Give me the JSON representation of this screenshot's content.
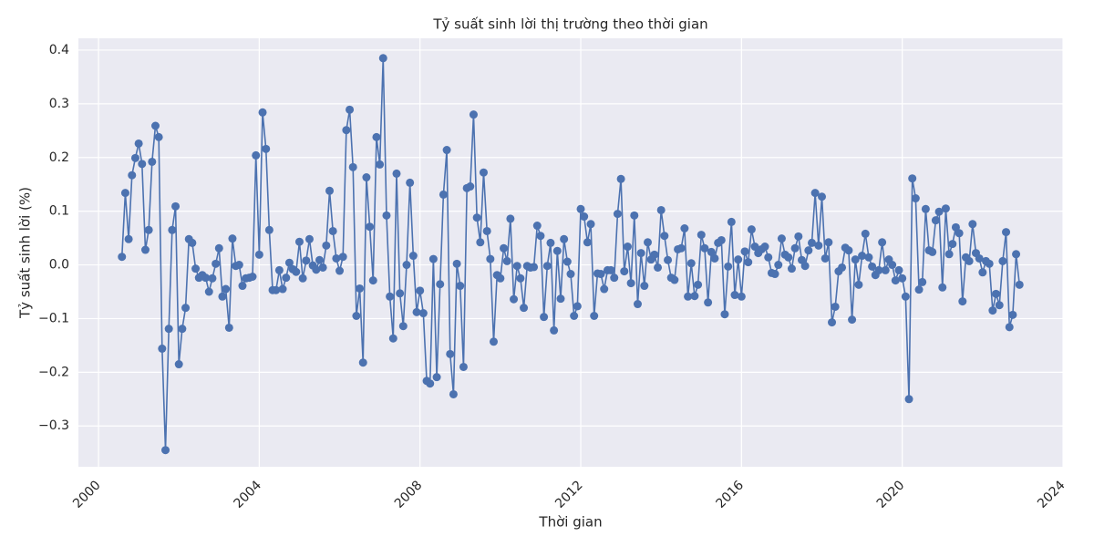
{
  "chart_data": {
    "type": "line",
    "title": "Tỷ suất sinh lời thị trường theo thời gian",
    "xlabel": "Thời gian",
    "ylabel": "Tỷ suất sinh lời (%)",
    "xlim": [
      1999.5,
      2024
    ],
    "ylim": [
      -0.376,
      0.422
    ],
    "xticks": [
      2000,
      2004,
      2008,
      2012,
      2016,
      2020,
      2024
    ],
    "yticks": [
      {
        "value": -0.3,
        "label": "−0.3"
      },
      {
        "value": -0.2,
        "label": "−0.2"
      },
      {
        "value": -0.1,
        "label": "−0.1"
      },
      {
        "value": 0,
        "label": "0.0"
      },
      0.1,
      0.2,
      0.3,
      0.4
    ],
    "grid": true,
    "series": [
      {
        "color": "#4c72b0",
        "x": [
          2000.583,
          2000.667,
          2000.75,
          2000.833,
          2000.917,
          2001,
          2001.083,
          2001.167,
          2001.25,
          2001.333,
          2001.417,
          2001.5,
          2001.583,
          2001.667,
          2001.75,
          2001.833,
          2001.917,
          2002,
          2002.083,
          2002.167,
          2002.25,
          2002.333,
          2002.417,
          2002.5,
          2002.583,
          2002.667,
          2002.75,
          2002.833,
          2002.917,
          2003,
          2003.083,
          2003.167,
          2003.25,
          2003.333,
          2003.417,
          2003.5,
          2003.583,
          2003.667,
          2003.75,
          2003.833,
          2003.917,
          2004,
          2004.083,
          2004.167,
          2004.25,
          2004.333,
          2004.417,
          2004.5,
          2004.583,
          2004.667,
          2004.75,
          2004.833,
          2004.917,
          2005,
          2005.083,
          2005.167,
          2005.25,
          2005.333,
          2005.417,
          2005.5,
          2005.583,
          2005.667,
          2005.75,
          2005.833,
          2005.917,
          2006,
          2006.083,
          2006.167,
          2006.25,
          2006.333,
          2006.417,
          2006.5,
          2006.583,
          2006.667,
          2006.75,
          2006.833,
          2006.917,
          2007,
          2007.083,
          2007.167,
          2007.25,
          2007.333,
          2007.417,
          2007.5,
          2007.583,
          2007.667,
          2007.75,
          2007.833,
          2007.917,
          2008,
          2008.083,
          2008.167,
          2008.25,
          2008.333,
          2008.417,
          2008.5,
          2008.583,
          2008.667,
          2008.75,
          2008.833,
          2008.917,
          2009,
          2009.083,
          2009.167,
          2009.25,
          2009.333,
          2009.417,
          2009.5,
          2009.583,
          2009.667,
          2009.75,
          2009.833,
          2009.917,
          2010,
          2010.083,
          2010.167,
          2010.25,
          2010.333,
          2010.417,
          2010.5,
          2010.583,
          2010.667,
          2010.75,
          2010.833,
          2010.917,
          2011,
          2011.083,
          2011.167,
          2011.25,
          2011.333,
          2011.417,
          2011.5,
          2011.583,
          2011.667,
          2011.75,
          2011.833,
          2011.917,
          2012,
          2012.083,
          2012.167,
          2012.25,
          2012.333,
          2012.417,
          2012.5,
          2012.583,
          2012.667,
          2012.75,
          2012.833,
          2012.917,
          2013,
          2013.083,
          2013.167,
          2013.25,
          2013.333,
          2013.417,
          2013.5,
          2013.583,
          2013.667,
          2013.75,
          2013.833,
          2013.917,
          2014,
          2014.083,
          2014.167,
          2014.25,
          2014.333,
          2014.417,
          2014.5,
          2014.583,
          2014.667,
          2014.75,
          2014.833,
          2014.917,
          2015,
          2015.083,
          2015.167,
          2015.25,
          2015.333,
          2015.417,
          2015.5,
          2015.583,
          2015.667,
          2015.75,
          2015.833,
          2015.917,
          2016,
          2016.083,
          2016.167,
          2016.25,
          2016.333,
          2016.417,
          2016.5,
          2016.583,
          2016.667,
          2016.75,
          2016.833,
          2016.917,
          2017,
          2017.083,
          2017.167,
          2017.25,
          2017.333,
          2017.417,
          2017.5,
          2017.583,
          2017.667,
          2017.75,
          2017.833,
          2017.917,
          2018,
          2018.083,
          2018.167,
          2018.25,
          2018.333,
          2018.417,
          2018.5,
          2018.583,
          2018.667,
          2018.75,
          2018.833,
          2018.917,
          2019,
          2019.083,
          2019.167,
          2019.25,
          2019.333,
          2019.417,
          2019.5,
          2019.583,
          2019.667,
          2019.75,
          2019.833,
          2019.917,
          2020,
          2020.083,
          2020.167,
          2020.25,
          2020.333,
          2020.417,
          2020.5,
          2020.583,
          2020.667,
          2020.75,
          2020.833,
          2020.917,
          2021,
          2021.083,
          2021.167,
          2021.25,
          2021.333,
          2021.417,
          2021.5,
          2021.583,
          2021.667,
          2021.75,
          2021.833,
          2021.917,
          2022,
          2022.083,
          2022.167,
          2022.25,
          2022.333,
          2022.417,
          2022.5,
          2022.583,
          2022.667,
          2022.75,
          2022.833,
          2022.917
        ],
        "values": [
          0.015,
          0.134,
          0.048,
          0.167,
          0.199,
          0.226,
          0.188,
          0.028,
          0.065,
          0.192,
          0.259,
          0.238,
          -0.156,
          -0.345,
          -0.119,
          0.065,
          0.109,
          -0.185,
          -0.119,
          -0.08,
          0.048,
          0.041,
          -0.007,
          -0.024,
          -0.019,
          -0.024,
          -0.05,
          -0.025,
          0.002,
          0.031,
          -0.059,
          -0.045,
          -0.117,
          0.049,
          -0.002,
          0,
          -0.039,
          -0.025,
          -0.024,
          -0.022,
          0.204,
          0.019,
          0.284,
          0.216,
          0.065,
          -0.047,
          -0.047,
          -0.01,
          -0.045,
          -0.024,
          0.004,
          -0.008,
          -0.013,
          0.043,
          -0.025,
          0.008,
          0.048,
          -0.001,
          -0.009,
          0.009,
          -0.005,
          0.036,
          0.138,
          0.063,
          0.012,
          -0.011,
          0.015,
          0.251,
          0.289,
          0.182,
          -0.095,
          -0.044,
          -0.182,
          0.163,
          0.071,
          -0.029,
          0.238,
          0.187,
          0.385,
          0.092,
          -0.059,
          -0.137,
          0.17,
          -0.053,
          -0.114,
          0,
          0.153,
          0.017,
          -0.088,
          -0.048,
          -0.09,
          -0.216,
          -0.221,
          0.011,
          -0.209,
          -0.036,
          0.131,
          0.214,
          -0.166,
          -0.241,
          0.002,
          -0.039,
          -0.19,
          0.143,
          0.146,
          0.28,
          0.088,
          0.042,
          0.172,
          0.063,
          0.011,
          -0.143,
          -0.019,
          -0.025,
          0.031,
          0.007,
          0.086,
          -0.064,
          -0.002,
          -0.025,
          -0.08,
          -0.002,
          -0.005,
          -0.004,
          0.073,
          0.054,
          -0.097,
          -0.002,
          0.041,
          -0.122,
          0.026,
          -0.063,
          0.048,
          0.006,
          -0.017,
          -0.095,
          -0.077,
          0.104,
          0.09,
          0.042,
          0.076,
          -0.095,
          -0.016,
          -0.017,
          -0.045,
          -0.01,
          -0.01,
          -0.024,
          0.095,
          0.16,
          -0.012,
          0.034,
          -0.034,
          0.092,
          -0.073,
          0.022,
          -0.039,
          0.042,
          0.01,
          0.019,
          -0.005,
          0.102,
          0.054,
          0.009,
          -0.024,
          -0.028,
          0.029,
          0.031,
          0.068,
          -0.059,
          0.003,
          -0.058,
          -0.037,
          0.056,
          0.031,
          -0.07,
          0.024,
          0.012,
          0.041,
          0.046,
          -0.092,
          -0.003,
          0.08,
          -0.056,
          0.01,
          -0.059,
          0.025,
          0.005,
          0.066,
          0.034,
          0.022,
          0.029,
          0.034,
          0.014,
          -0.015,
          -0.017,
          0,
          0.049,
          0.019,
          0.014,
          -0.007,
          0.031,
          0.053,
          0.009,
          -0.002,
          0.027,
          0.041,
          0.134,
          0.036,
          0.127,
          0.012,
          0.042,
          -0.107,
          -0.078,
          -0.012,
          -0.005,
          0.032,
          0.027,
          -0.102,
          0.01,
          -0.037,
          0.017,
          0.058,
          0.014,
          -0.003,
          -0.019,
          -0.01,
          0.042,
          -0.01,
          0.01,
          0,
          -0.029,
          -0.01,
          -0.025,
          -0.059,
          -0.25,
          0.161,
          0.124,
          -0.046,
          -0.032,
          0.104,
          0.027,
          0.024,
          0.083,
          0.099,
          -0.042,
          0.105,
          0.02,
          0.039,
          0.07,
          0.059,
          -0.068,
          0.014,
          0.007,
          0.076,
          0.022,
          0.012,
          -0.014,
          0.007,
          0.002,
          -0.085,
          -0.054,
          -0.075,
          0.007,
          0.061,
          -0.116,
          -0.093,
          0.02,
          -0.037
        ]
      }
    ]
  }
}
